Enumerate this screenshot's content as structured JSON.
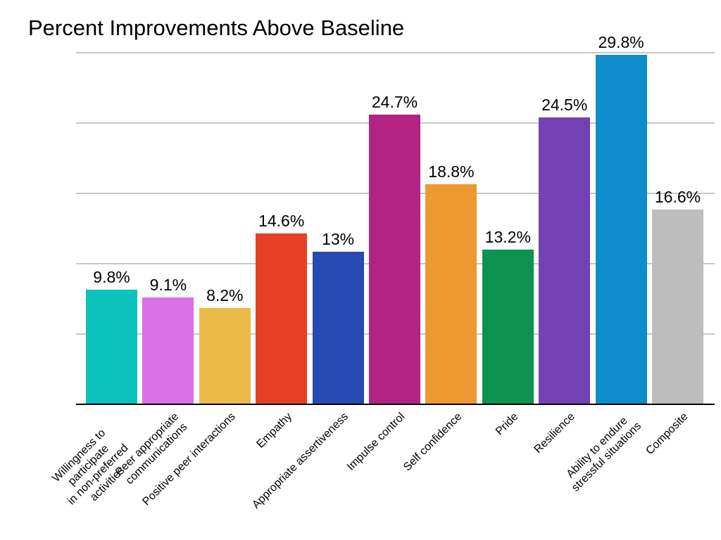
{
  "page": {
    "background": "#FFFFFF"
  },
  "chart_data": {
    "type": "bar",
    "title": "Percent Improvements Above Baseline",
    "categories": [
      "Willingness to participate\nin non-preferred activities",
      "Peer appropriate\ncommunications",
      "Positive peer interactions",
      "Empathy",
      "Appropriate assertiveness",
      "Impulse control",
      "Self confidence",
      "Pride",
      "Resilience",
      "Ability to endure\nstressful situations",
      "Composite"
    ],
    "values": [
      9.8,
      9.1,
      8.2,
      14.6,
      13,
      24.7,
      18.8,
      13.2,
      24.5,
      29.8,
      16.6
    ],
    "value_labels": [
      "9.8%",
      "9.1%",
      "8.2%",
      "14.6%",
      "13%",
      "24.7%",
      "18.8%",
      "13.2%",
      "24.5%",
      "29.8%",
      "16.6%"
    ],
    "bar_colors": [
      "#0BC1BC",
      "#DB6FE8",
      "#EABB49",
      "#E73F26",
      "#2649B2",
      "#B22484",
      "#EE9832",
      "#0F9150",
      "#7441B3",
      "#0E8DCD",
      "#BDBDBD"
    ],
    "xlabel": "",
    "ylabel": "",
    "ylim": [
      0,
      30
    ],
    "gridline_values": [
      6,
      12,
      18,
      24,
      30
    ],
    "grid": true,
    "grid_color": "#CAC6C8",
    "axis_color": "#000000",
    "text_color": "#000000",
    "legend_position": "none"
  }
}
